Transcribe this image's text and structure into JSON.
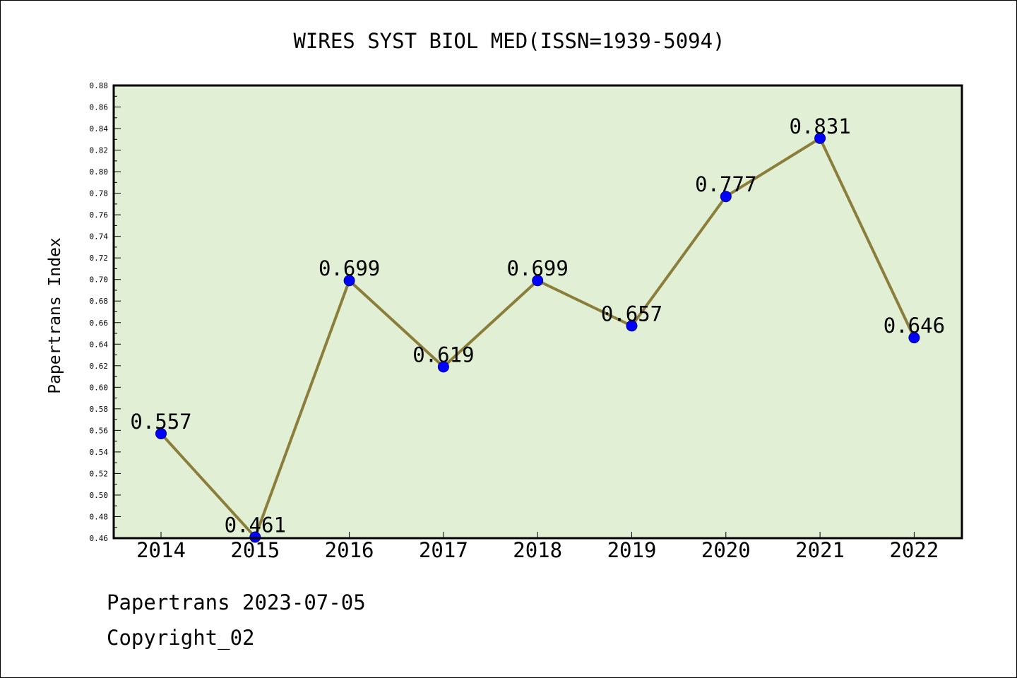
{
  "chart_data": {
    "type": "line",
    "title": "WIRES SYST BIOL MED(ISSN=1939-5094)",
    "xlabel": "",
    "ylabel": "Papertrans Index",
    "categories": [
      "2014",
      "2015",
      "2016",
      "2017",
      "2018",
      "2019",
      "2020",
      "2021",
      "2022"
    ],
    "series": [
      {
        "values": [
          0.557,
          0.461,
          0.699,
          0.619,
          0.699,
          0.657,
          0.777,
          0.831,
          0.646
        ],
        "data_labels": [
          "0.557",
          "0.461",
          "0.699",
          "0.619",
          "0.699",
          "0.657",
          "0.777",
          "0.831",
          "0.646"
        ]
      }
    ],
    "ylim": [
      0.46,
      0.88
    ],
    "y_ticks": [
      "0.46",
      "0.48",
      "0.50",
      "0.52",
      "0.54",
      "0.56",
      "0.58",
      "0.60",
      "0.62",
      "0.64",
      "0.66",
      "0.68",
      "0.70",
      "0.72",
      "0.74",
      "0.76",
      "0.78",
      "0.80",
      "0.82",
      "0.84",
      "0.86",
      "0.88"
    ],
    "grid": false,
    "legend": "none",
    "colors": {
      "plot_background": "#e1efd5",
      "line": "#8b7d3a",
      "marker": "#0000ff"
    }
  },
  "footer": {
    "line1": "Papertrans 2023-07-05",
    "line2": "Copyright_02"
  }
}
